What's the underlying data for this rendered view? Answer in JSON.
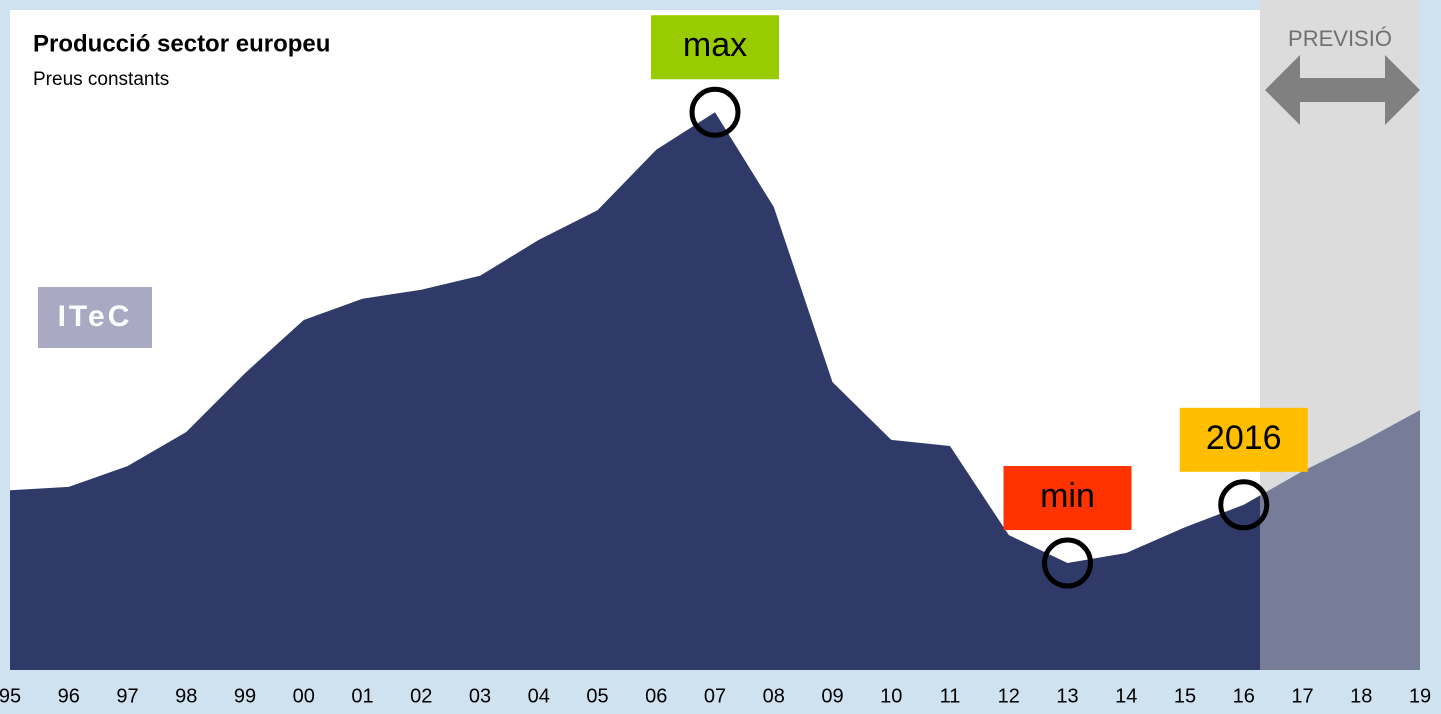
{
  "chart_data": {
    "type": "area",
    "title": "Producció sector europeu",
    "subtitle": "Preus constants",
    "logo": "ITeC",
    "forecast_label": "PREVISIÓ",
    "categories": [
      "95",
      "96",
      "97",
      "98",
      "99",
      "00",
      "01",
      "02",
      "03",
      "04",
      "05",
      "06",
      "07",
      "08",
      "09",
      "10",
      "11",
      "12",
      "13",
      "14",
      "15",
      "16",
      "17",
      "18",
      "19"
    ],
    "values": [
      32.1,
      32.7,
      36.4,
      42.5,
      53.0,
      62.5,
      66.3,
      67.9,
      70.4,
      76.8,
      82.1,
      92.9,
      99.6,
      82.7,
      51.4,
      41.1,
      40.0,
      24.1,
      19.1,
      20.9,
      25.5,
      29.5,
      35.5,
      40.7,
      46.4
    ],
    "color": "#2f3a69",
    "forecast_color": "#777d99",
    "ylim": [
      0,
      100
    ],
    "annotations": [
      {
        "label": "max",
        "x": "07",
        "color": "#99cc00"
      },
      {
        "label": "min",
        "x": "13",
        "color": "#ff3300"
      },
      {
        "label": "2016",
        "x": "16",
        "color": "#ffbf00"
      }
    ]
  }
}
